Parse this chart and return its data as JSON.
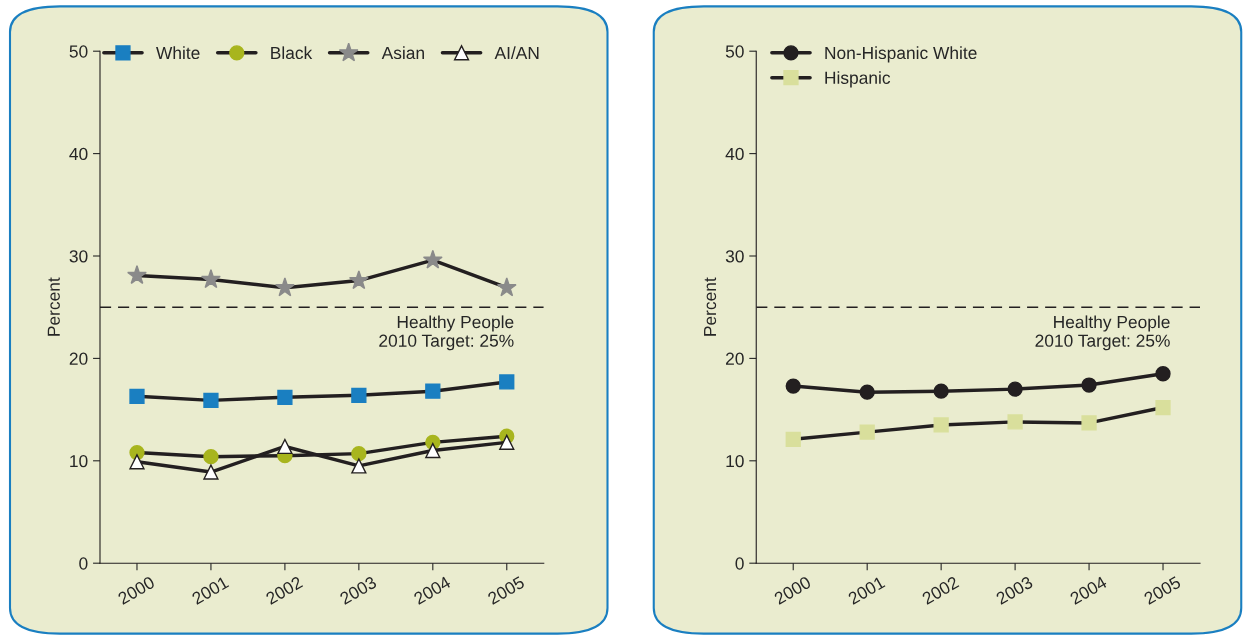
{
  "chart_data": [
    {
      "type": "line",
      "ylabel": "Percent",
      "categories": [
        "2000",
        "2001",
        "2002",
        "2003",
        "2004",
        "2005"
      ],
      "ylim": [
        0,
        50
      ],
      "yticks": [
        0,
        10,
        20,
        30,
        40,
        50
      ],
      "grid": false,
      "legend": "top",
      "series": [
        {
          "name": "White",
          "color": "#1a7fc1",
          "marker": "square",
          "values": [
            16.3,
            15.9,
            16.2,
            16.4,
            16.8,
            17.7
          ]
        },
        {
          "name": "Black",
          "color": "#a8b51e",
          "marker": "circle",
          "values": [
            10.8,
            10.4,
            10.5,
            10.7,
            11.8,
            12.4
          ]
        },
        {
          "name": "Asian",
          "color": "#8a8a8a",
          "marker": "star",
          "values": [
            28.1,
            27.7,
            26.9,
            27.6,
            29.6,
            26.9
          ]
        },
        {
          "name": "AI/AN",
          "color": "#ffffff",
          "marker": "triangle",
          "values": [
            9.9,
            8.9,
            11.4,
            9.5,
            11.0,
            11.8
          ]
        }
      ],
      "ref_lines": [
        {
          "axis": "y",
          "value": 25,
          "label": "Healthy People\n2010 Target: 25%",
          "color": "#231f20",
          "line_style": "dashed"
        }
      ]
    },
    {
      "type": "line",
      "ylabel": "Percent",
      "categories": [
        "2000",
        "2001",
        "2002",
        "2003",
        "2004",
        "2005"
      ],
      "ylim": [
        0,
        50
      ],
      "yticks": [
        0,
        10,
        20,
        30,
        40,
        50
      ],
      "grid": false,
      "legend": "top left",
      "series": [
        {
          "name": "Non-Hispanic White",
          "color": "#231f20",
          "marker": "circle",
          "values": [
            17.3,
            16.7,
            16.8,
            17.0,
            17.4,
            18.5
          ]
        },
        {
          "name": "Hispanic",
          "color": "#d9df9c",
          "marker": "square",
          "values": [
            12.1,
            12.8,
            13.5,
            13.8,
            13.7,
            15.2
          ]
        }
      ],
      "ref_lines": [
        {
          "axis": "y",
          "value": 25,
          "label": "Healthy People\n2010 Target: 25%",
          "color": "#231f20",
          "line_style": "dashed"
        }
      ]
    }
  ]
}
